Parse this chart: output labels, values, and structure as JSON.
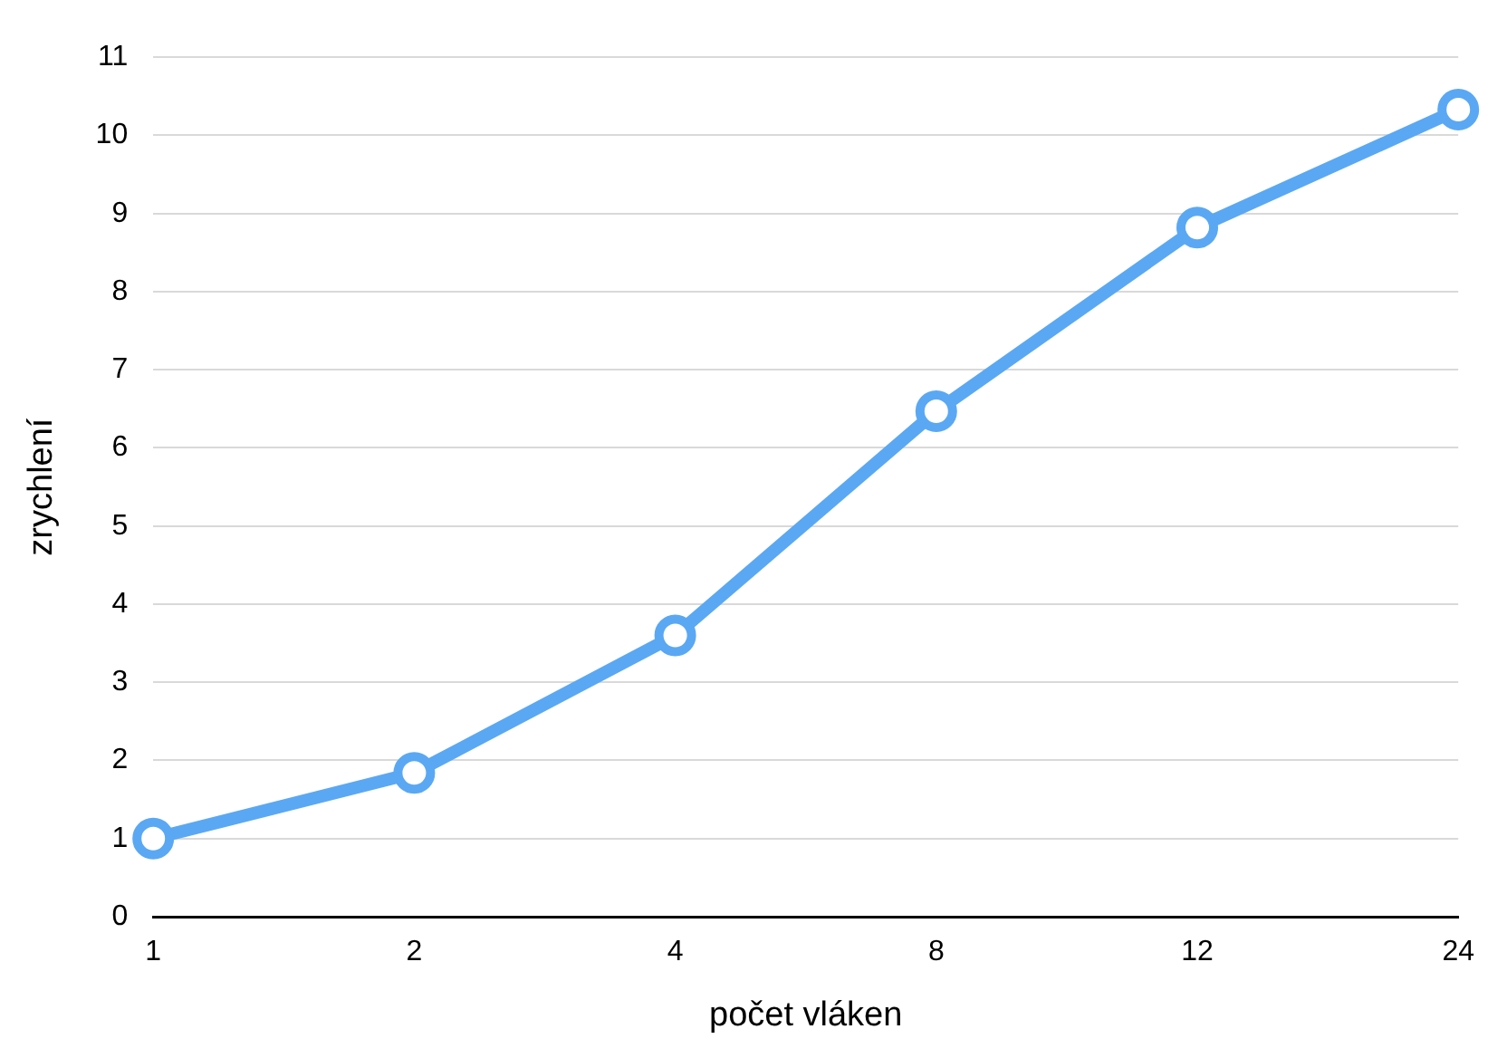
{
  "chart_data": {
    "type": "line",
    "xlabel": "počet vláken",
    "ylabel": "zrychlení",
    "categories": [
      "1",
      "2",
      "4",
      "8",
      "12",
      "24"
    ],
    "series": [
      {
        "color": "#5aa8f4",
        "values": [
          1.0,
          1.84,
          3.6,
          6.47,
          8.82,
          10.33
        ]
      }
    ],
    "ylim": [
      0,
      11
    ],
    "yticks": [
      0,
      1,
      2,
      3,
      4,
      5,
      6,
      7,
      8,
      9,
      10,
      11
    ],
    "grid": "y",
    "legend": false,
    "marker": "circle",
    "line_style": "solid"
  }
}
